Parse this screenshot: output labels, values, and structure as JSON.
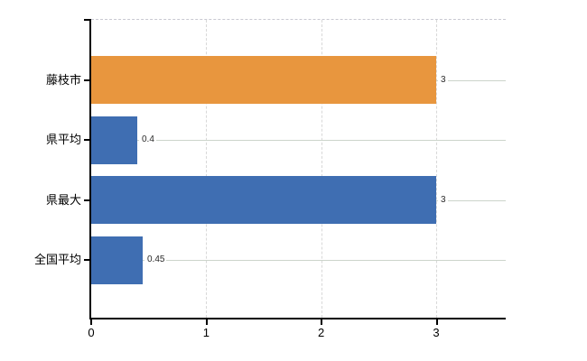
{
  "chart_data": {
    "type": "bar",
    "orientation": "horizontal",
    "title": "",
    "categories": [
      "藤枝市",
      "県平均",
      "県最大",
      "全国平均"
    ],
    "values": [
      3,
      0.4,
      3,
      0.45
    ],
    "value_labels": [
      "3",
      "0.4",
      "3",
      "0.45"
    ],
    "bar_colors": [
      "#E8963E",
      "#3F6EB2",
      "#3F6EB2",
      "#3F6EB2"
    ],
    "x_tick_labels": [
      "0",
      "1",
      "2",
      "3"
    ],
    "x_tick_values": [
      0,
      1,
      2,
      3
    ],
    "xlim": [
      0,
      3.6
    ],
    "grid": "on",
    "legend": "none",
    "colors": {
      "bar_orange": "#E8963E",
      "bar_blue": "#3F6EB2",
      "axis": "#000000",
      "gridline_horizontal": "#ccd4cb",
      "gridline_vertical": "#d8d8d8",
      "gridline_top": "#c9c9d2",
      "value_label_text": "#2a2a2a"
    }
  }
}
